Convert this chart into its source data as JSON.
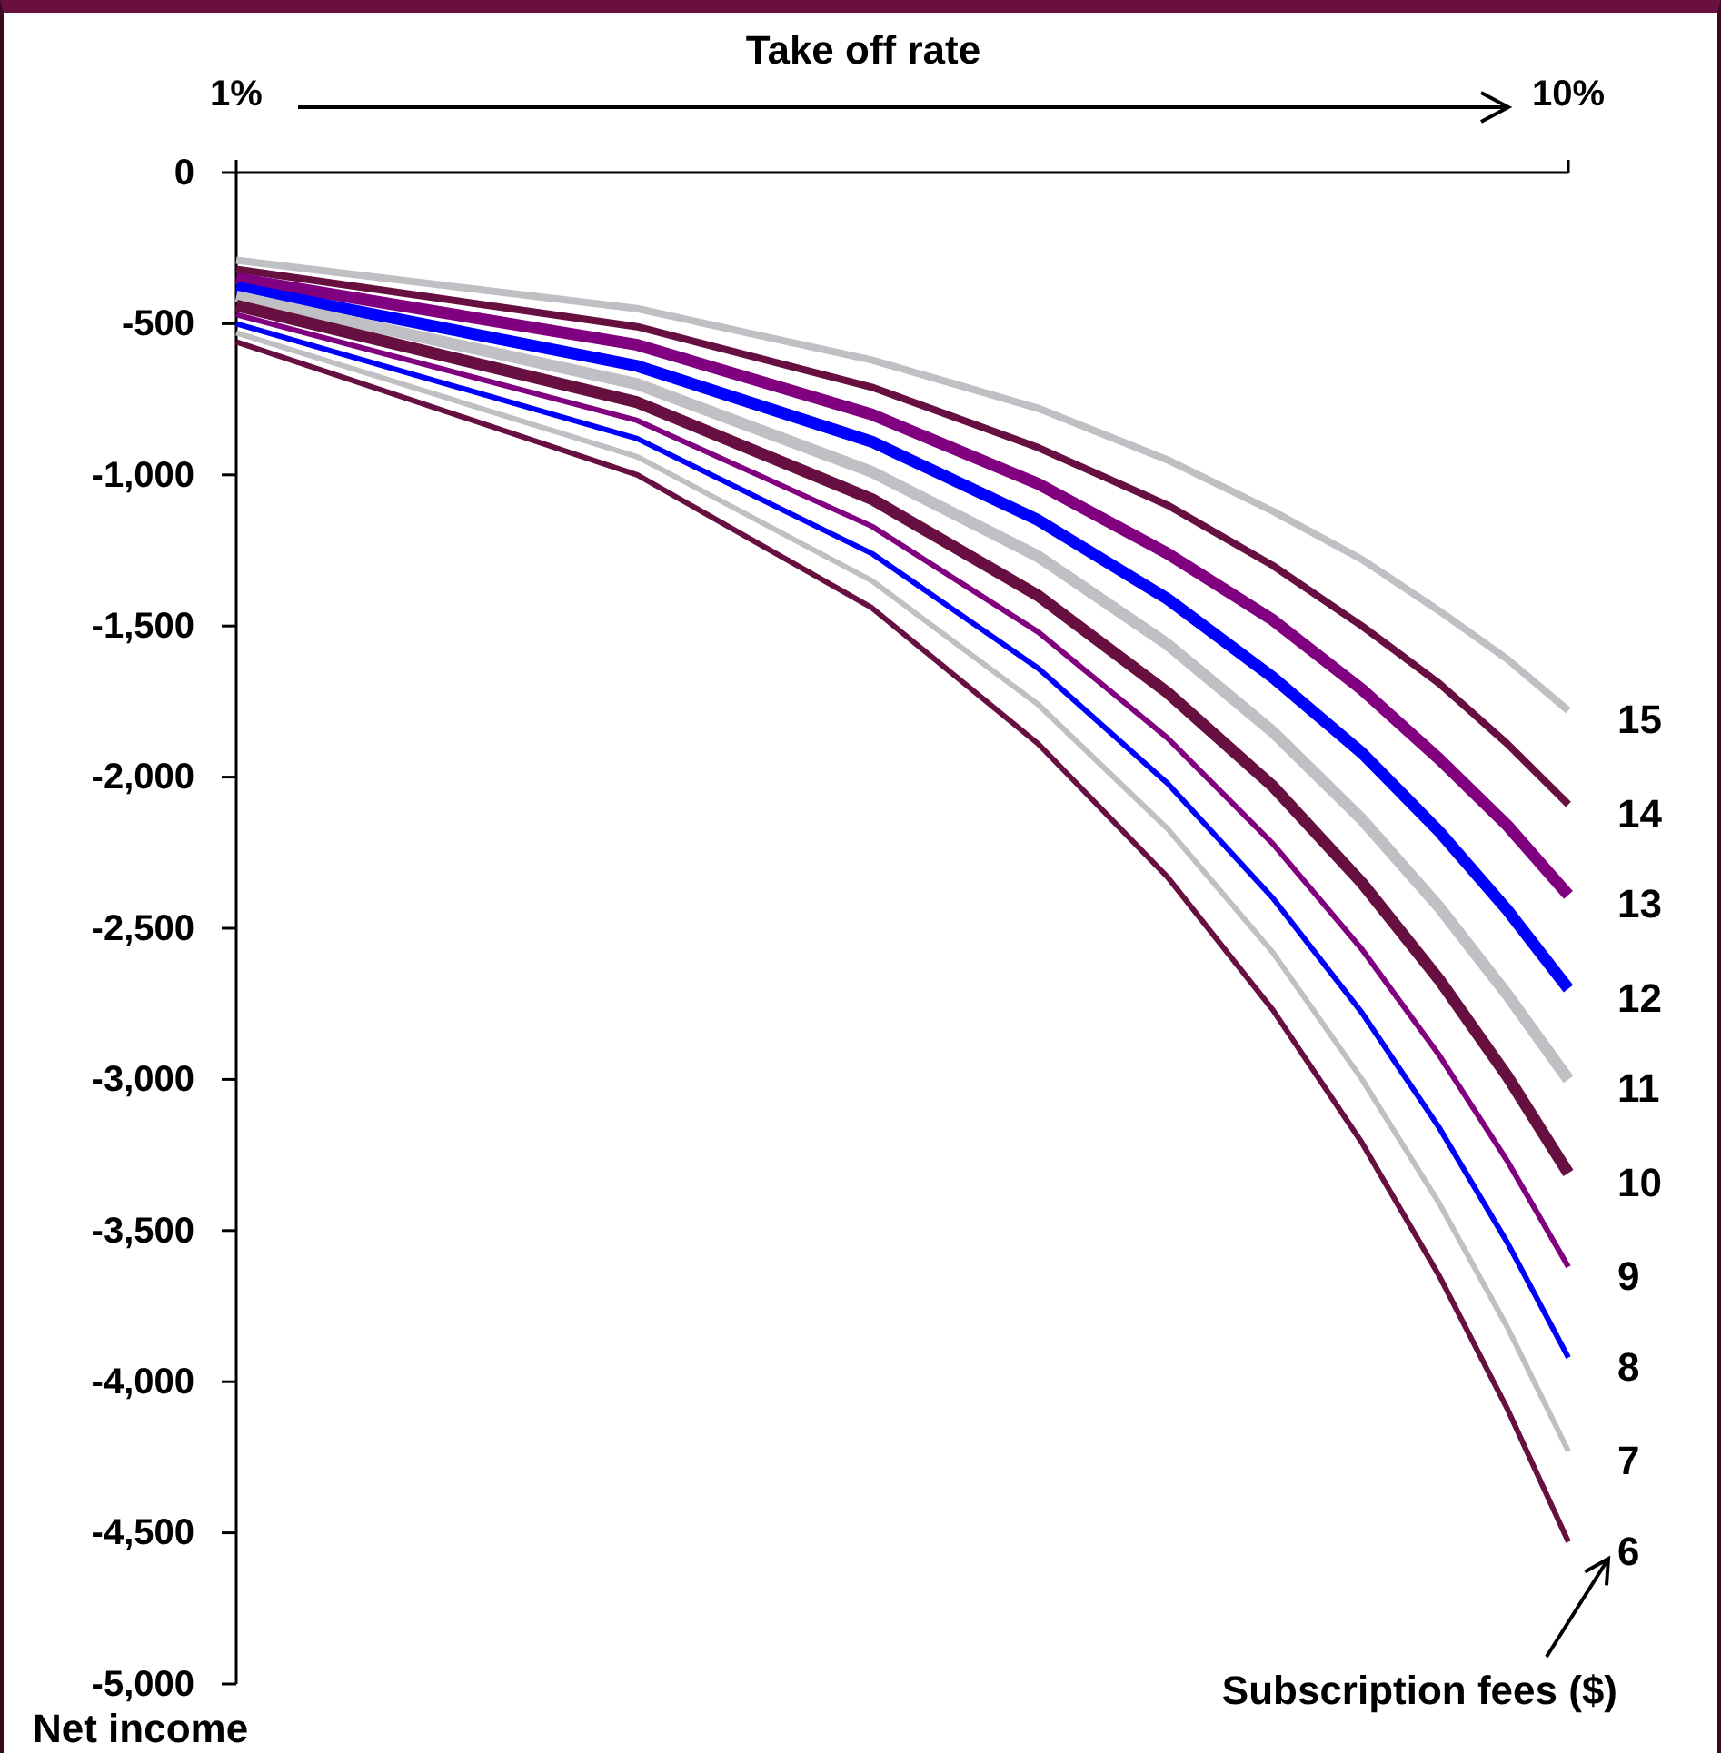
{
  "chart_data": {
    "type": "line",
    "xlabel": "Take off rate",
    "ylabel": "Net income",
    "legend_title": "Subscription fees ($)",
    "x": [
      1,
      2,
      3,
      4,
      5,
      6,
      7,
      8,
      9,
      10
    ],
    "log": "x",
    "xlim": [
      1,
      10
    ],
    "xticks": [
      {
        "value": 1,
        "label": "1%"
      },
      {
        "value": 10,
        "label": "10%"
      }
    ],
    "ylim": [
      -5000,
      0
    ],
    "yticks": [
      0,
      -500,
      {
        "value": -1000,
        "label": "-1,000"
      },
      {
        "value": -1500,
        "label": "-1,500"
      },
      {
        "value": -2000,
        "label": "-2,000"
      },
      {
        "value": -2500,
        "label": "-2,500"
      },
      {
        "value": -3000,
        "label": "-3,000"
      },
      {
        "value": -3500,
        "label": "-3,500"
      },
      {
        "value": -4000,
        "label": "-4,000"
      },
      {
        "value": -4500,
        "label": "-4,500"
      },
      {
        "value": -5000,
        "label": "-5,000"
      }
    ],
    "series": [
      {
        "name": "15",
        "color": "#bfbfc4",
        "values": [
          -290,
          -450,
          -620,
          -780,
          -950,
          -1120,
          -1280,
          -1450,
          -1610,
          -1780
        ]
      },
      {
        "name": "14",
        "color": "#660f40",
        "values": [
          -320,
          -510,
          -710,
          -910,
          -1100,
          -1300,
          -1500,
          -1690,
          -1890,
          -2090
        ]
      },
      {
        "name": "13",
        "color": "#800080",
        "values": [
          -350,
          -570,
          -800,
          -1030,
          -1260,
          -1480,
          -1710,
          -1940,
          -2160,
          -2390
        ]
      },
      {
        "name": "12",
        "color": "#0000ff",
        "values": [
          -380,
          -640,
          -890,
          -1150,
          -1410,
          -1670,
          -1920,
          -2180,
          -2440,
          -2700
        ]
      },
      {
        "name": "11",
        "color": "#bfbfc4",
        "values": [
          -410,
          -700,
          -990,
          -1270,
          -1560,
          -1850,
          -2140,
          -2430,
          -2720,
          -3000
        ]
      },
      {
        "name": "10",
        "color": "#660f40",
        "values": [
          -440,
          -760,
          -1080,
          -1400,
          -1720,
          -2030,
          -2350,
          -2670,
          -2990,
          -3310
        ]
      },
      {
        "name": "9",
        "color": "#800080",
        "values": [
          -470,
          -820,
          -1170,
          -1520,
          -1870,
          -2220,
          -2570,
          -2920,
          -3270,
          -3620
        ]
      },
      {
        "name": "8",
        "color": "#0000ff",
        "values": [
          -500,
          -880,
          -1260,
          -1640,
          -2020,
          -2400,
          -2780,
          -3160,
          -3540,
          -3920
        ]
      },
      {
        "name": "7",
        "color": "#bfbfc4",
        "values": [
          -530,
          -940,
          -1350,
          -1760,
          -2170,
          -2580,
          -3000,
          -3410,
          -3820,
          -4230
        ]
      },
      {
        "name": "6",
        "color": "#660f40",
        "values": [
          -560,
          -1000,
          -1440,
          -1890,
          -2330,
          -2770,
          -3210,
          -3650,
          -4090,
          -4530
        ]
      }
    ]
  }
}
